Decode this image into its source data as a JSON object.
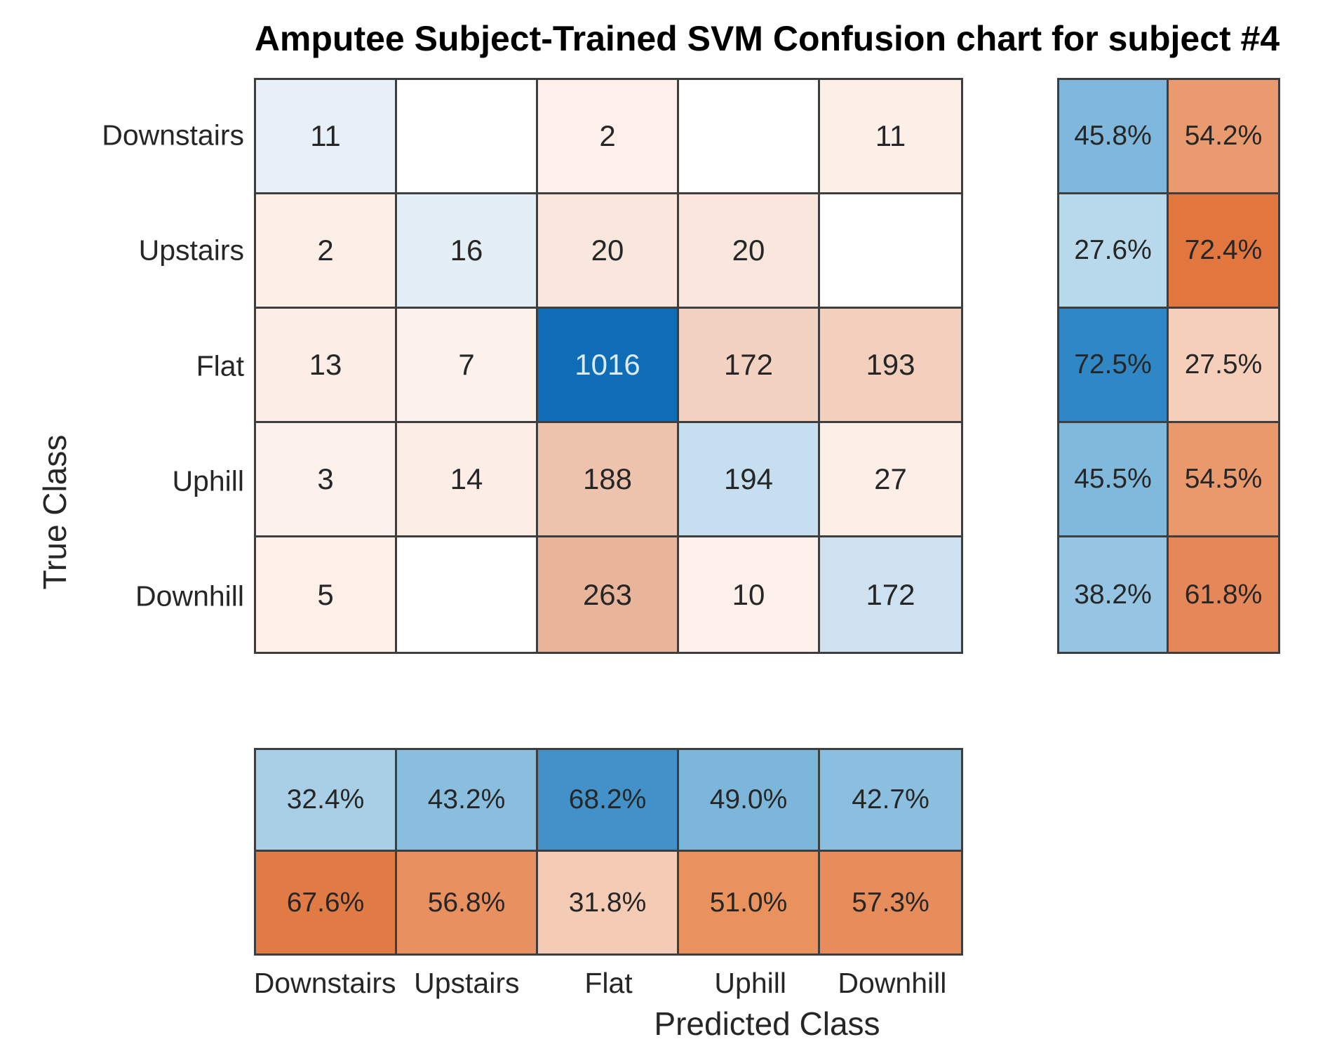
{
  "title": "Amputee Subject-Trained SVM Confusion chart for subject #4",
  "chart_data": {
    "type": "heatmap",
    "title": "Amputee Subject-Trained SVM Confusion chart for subject #4",
    "xlabel": "Predicted Class",
    "ylabel": "True Class",
    "classes": [
      "Downstairs",
      "Upstairs",
      "Flat",
      "Uphill",
      "Downhill"
    ],
    "matrix": [
      [
        11,
        null,
        2,
        null,
        11
      ],
      [
        2,
        16,
        20,
        20,
        null
      ],
      [
        13,
        7,
        1016,
        172,
        193
      ],
      [
        3,
        14,
        188,
        194,
        27
      ],
      [
        5,
        null,
        263,
        10,
        172
      ]
    ],
    "row_summary": {
      "correct": [
        "45.8%",
        "27.6%",
        "72.5%",
        "45.5%",
        "38.2%"
      ],
      "incorrect": [
        "54.2%",
        "72.4%",
        "27.5%",
        "54.5%",
        "61.8%"
      ]
    },
    "col_summary": {
      "correct": [
        "32.4%",
        "43.2%",
        "68.2%",
        "49.0%",
        "42.7%"
      ],
      "incorrect": [
        "67.6%",
        "56.8%",
        "31.8%",
        "51.0%",
        "57.3%"
      ]
    },
    "legend_position": "none",
    "grid": true
  },
  "colors": {
    "grid_line": "#3e3e3e",
    "cell_text": "#262626",
    "max_cell_text": "#dcebf7",
    "matrix": [
      [
        "#e7eff8",
        "#ffffff",
        "#fdf0ea",
        "#ffffff",
        "#fcefe8"
      ],
      [
        "#fcefe8",
        "#e4eef7",
        "#f9e6dd",
        "#f9e6dd",
        "#ffffff"
      ],
      [
        "#fceee6",
        "#fdf1eb",
        "#0e6db4",
        "#f4d2c1",
        "#f3d0be"
      ],
      [
        "#fdf1eb",
        "#fceee6",
        "#eec3ad",
        "#c5def0",
        "#fcefe7"
      ],
      [
        "#fdf0e9",
        "#ffffff",
        "#e8b59b",
        "#fdf0ea",
        "#cde1f1"
      ]
    ],
    "row_summary_correct": [
      "#7fb8dc",
      "#b8d8ec",
      "#2f87c5",
      "#81b9dd",
      "#95c5e3"
    ],
    "row_summary_incorrect": [
      "#ea9a6f",
      "#e1763f",
      "#f5cfba",
      "#ea996d",
      "#e68759"
    ],
    "col_summary_correct": [
      "#a9cfe7",
      "#8abede",
      "#4292c9",
      "#7db6db",
      "#8bbfdf"
    ],
    "col_summary_incorrect": [
      "#e07b45",
      "#e89060",
      "#f4ccb6",
      "#e9925e",
      "#e78d5b"
    ]
  }
}
